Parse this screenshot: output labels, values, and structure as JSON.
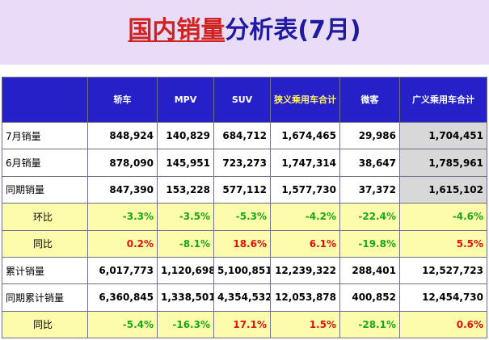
{
  "title": {
    "part_red": "国内销量",
    "part_blue": "分析表(7月)"
  },
  "table": {
    "headers": [
      "",
      "轿车",
      "MPV",
      "SUV",
      "狭义乘用车合计",
      "微客",
      "广义乘用车合计"
    ],
    "rows": [
      {
        "label": "7月销量",
        "values": [
          "848,924",
          "140,829",
          "684,712",
          "1,674,465",
          "29,986",
          "1,704,451"
        ],
        "style": "white"
      },
      {
        "label": "6月销量",
        "values": [
          "878,090",
          "145,951",
          "723,273",
          "1,747,314",
          "38,647",
          "1,785,961"
        ],
        "style": "white"
      },
      {
        "label": "同期销量",
        "values": [
          "847,390",
          "153,228",
          "577,112",
          "1,577,730",
          "37,372",
          "1,615,102"
        ],
        "style": "white"
      },
      {
        "label": "环比",
        "values": [
          "-3.3%",
          "-3.5%",
          "-5.3%",
          "-4.2%",
          "-22.4%",
          "-4.6%"
        ],
        "style": "yellow"
      },
      {
        "label": "同比",
        "values": [
          "0.2%",
          "-8.1%",
          "18.6%",
          "6.1%",
          "-19.8%",
          "5.5%"
        ],
        "style": "yellow"
      },
      {
        "label": "累计销量",
        "values": [
          "6,017,773",
          "1,120,698",
          "5,100,851",
          "12,239,322",
          "288,401",
          "12,527,723"
        ],
        "style": "white"
      },
      {
        "label": "同期累计销量",
        "values": [
          "6,360,845",
          "1,338,501",
          "4,354,532",
          "12,053,878",
          "400,852",
          "12,454,730"
        ],
        "style": "white"
      },
      {
        "label": "同比",
        "values": [
          "-5.4%",
          "-16.3%",
          "17.1%",
          "1.5%",
          "-28.1%",
          "0.6%"
        ],
        "style": "yellow"
      }
    ]
  },
  "colors": {
    "header_bg": "#2520c8",
    "yellow_row_bg": "#fdfcaa",
    "positive": "#e01010",
    "negative": "#18a818",
    "total_col_bg": "#d8d8d8"
  }
}
